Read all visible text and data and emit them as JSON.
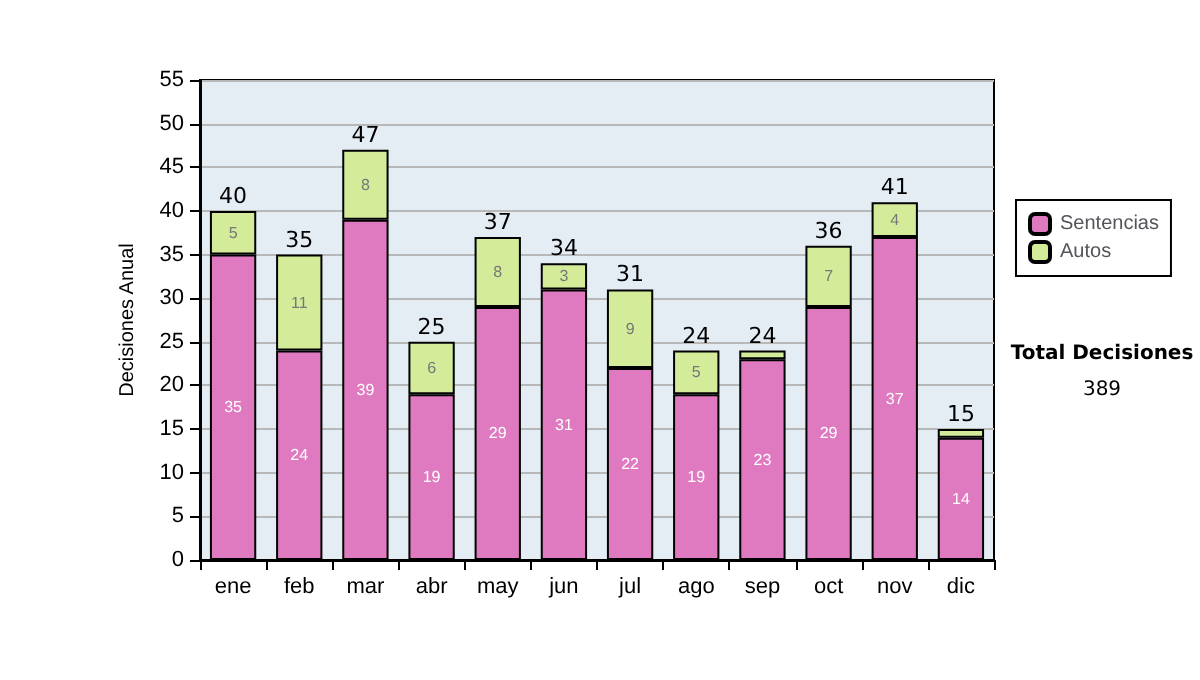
{
  "chart_data": {
    "type": "bar",
    "stacked": true,
    "ylabel": "Decisiones Anual",
    "categories": [
      "ene",
      "feb",
      "mar",
      "abr",
      "may",
      "jun",
      "jul",
      "ago",
      "sep",
      "oct",
      "nov",
      "dic"
    ],
    "series": [
      {
        "name": "Sentencias",
        "color": "#e07ac0",
        "values": [
          35,
          24,
          39,
          19,
          29,
          31,
          22,
          19,
          23,
          29,
          37,
          14
        ],
        "value_labels": [
          "35",
          "24",
          "39",
          "19",
          "29",
          "31",
          "22",
          "19",
          "23",
          "29",
          "37",
          "14"
        ]
      },
      {
        "name": "Autos",
        "color": "#d4ec9a",
        "values": [
          5,
          11,
          8,
          6,
          8,
          3,
          9,
          5,
          1,
          7,
          4,
          1
        ],
        "value_labels": [
          "5",
          "11",
          "8",
          "6",
          "8",
          "3",
          "9",
          "5",
          null,
          "7",
          "4",
          null
        ]
      }
    ],
    "totals": [
      "40",
      "35",
      "47",
      "25",
      "37",
      "34",
      "31",
      "24",
      "24",
      "36",
      "41",
      "15"
    ],
    "ylim": [
      0,
      55
    ],
    "yticks": [
      0,
      5,
      10,
      15,
      20,
      25,
      30,
      35,
      40,
      45,
      50,
      55
    ],
    "grid": "y",
    "legend": "right",
    "annotations": [
      "Total Decisiones",
      "389"
    ]
  }
}
